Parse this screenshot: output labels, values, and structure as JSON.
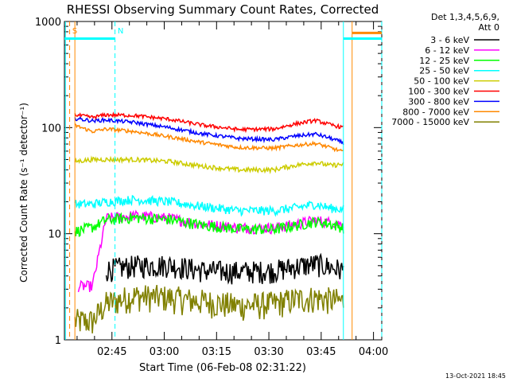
{
  "chart_data": {
    "type": "line",
    "title": "RHESSI Observing Summary Count Rates, Corrected",
    "xlabel": "Start Time (06-Feb-08 02:31:22)",
    "ylabel": "Corrected Count Rate (s⁻¹ detector⁻¹)",
    "yscale": "log",
    "ylim": [
      1,
      1000
    ],
    "xlim_minutes": [
      0,
      91
    ],
    "x_unit": "minutes since 02:31:22",
    "x_ticks": [
      {
        "label": "02:45",
        "value": 13.63
      },
      {
        "label": "03:00",
        "value": 28.63
      },
      {
        "label": "03:15",
        "value": 43.63
      },
      {
        "label": "03:30",
        "value": 58.63
      },
      {
        "label": "03:45",
        "value": 73.63
      },
      {
        "label": "04:00",
        "value": 88.63
      }
    ],
    "y_ticks": [
      {
        "label": "1",
        "value": 1
      },
      {
        "label": "10",
        "value": 10
      },
      {
        "label": "100",
        "value": 100
      },
      {
        "label": "1000",
        "value": 1000
      }
    ],
    "legend": {
      "title_lines": [
        "Det 1,3,4,5,6,9,",
        "Att 0"
      ],
      "position": "right"
    },
    "series": [
      {
        "name": "3 - 6 keV",
        "color": "#000000",
        "x": [
          12,
          20,
          30,
          40,
          50,
          60,
          66,
          72,
          76,
          80
        ],
        "y": [
          4.6,
          5.0,
          5.1,
          4.5,
          4.4,
          4.5,
          4.9,
          5.2,
          4.9,
          4.5
        ]
      },
      {
        "name": "6 - 12 keV",
        "color": "#ff00ff",
        "x": [
          4,
          8,
          12,
          20,
          30,
          40,
          50,
          60,
          66,
          72,
          76,
          80
        ],
        "y": [
          3.2,
          3.2,
          14.0,
          14.8,
          14.0,
          12.3,
          11.4,
          11.3,
          12.2,
          13.4,
          12.8,
          12.2
        ]
      },
      {
        "name": "12 - 25 keV",
        "color": "#00ff00",
        "x": [
          3,
          8,
          12,
          20,
          30,
          40,
          50,
          60,
          66,
          72,
          76,
          80
        ],
        "y": [
          10.5,
          11.5,
          13.5,
          14.2,
          13.6,
          12.0,
          11.1,
          11.0,
          11.9,
          13.0,
          12.4,
          11.4
        ]
      },
      {
        "name": "25 - 50 keV",
        "color": "#00ffff",
        "x": [
          3,
          8,
          12,
          20,
          30,
          40,
          50,
          60,
          66,
          72,
          76,
          80
        ],
        "y": [
          19,
          19,
          20,
          21,
          20,
          18,
          16.5,
          16.5,
          17.5,
          19,
          17.5,
          17
        ]
      },
      {
        "name": "50 - 100 keV",
        "color": "#cccc00",
        "x": [
          3,
          8,
          12,
          20,
          30,
          40,
          50,
          60,
          66,
          72,
          76,
          80
        ],
        "y": [
          48,
          50,
          50,
          50,
          48,
          43,
          40,
          40,
          44,
          47,
          44,
          45
        ]
      },
      {
        "name": "100 - 300 keV",
        "color": "#ff0000",
        "x": [
          3,
          8,
          12,
          20,
          30,
          40,
          50,
          60,
          66,
          72,
          76,
          80
        ],
        "y": [
          132,
          125,
          132,
          130,
          120,
          105,
          96,
          97,
          108,
          117,
          107,
          100
        ]
      },
      {
        "name": "300 - 800 keV",
        "color": "#0000ff",
        "x": [
          3,
          8,
          12,
          20,
          30,
          40,
          50,
          60,
          66,
          72,
          76,
          80
        ],
        "y": [
          122,
          116,
          118,
          112,
          100,
          87,
          79,
          77,
          83,
          87,
          80,
          72
        ]
      },
      {
        "name": "800 - 7000 keV",
        "color": "#ff8800",
        "x": [
          3,
          8,
          12,
          20,
          30,
          40,
          50,
          60,
          66,
          72,
          76,
          80
        ],
        "y": [
          105,
          92,
          97,
          92,
          82,
          72,
          65,
          64,
          68,
          71,
          65,
          59
        ]
      },
      {
        "name": "7000 - 15000 keV",
        "color": "#808000",
        "x": [
          3,
          8,
          12,
          20,
          30,
          40,
          50,
          60,
          66,
          72,
          76,
          80
        ],
        "y": [
          1.5,
          1.5,
          2.2,
          2.6,
          2.5,
          2.3,
          2.1,
          2.2,
          2.4,
          2.5,
          2.4,
          2.3
        ]
      }
    ],
    "annotations": [
      {
        "text": "S",
        "color": "#ff8800",
        "x": 1.8
      },
      {
        "text": "N",
        "color": "#00ffff",
        "x": 14.8
      }
    ],
    "flag_bars": [
      {
        "color": "#00ffff",
        "x_start": 0,
        "x_end": 14.5,
        "y_value": 690
      },
      {
        "color": "#00ffff",
        "x_start": 80,
        "x_end": 91,
        "y_value": 690
      },
      {
        "color": "#ff8800",
        "x_start": 82.5,
        "x_end": 91,
        "y_value": 780
      }
    ],
    "vertical_markers": [
      {
        "color": "#00ffff",
        "x": 0.3,
        "style": "solid"
      },
      {
        "color": "#ff8800",
        "x": 1.5,
        "style": "dashed"
      },
      {
        "color": "#ff8800",
        "x": 3,
        "style": "solid"
      },
      {
        "color": "#00ffff",
        "x": 14.5,
        "style": "dashed"
      },
      {
        "color": "#00ffff",
        "x": 80,
        "style": "solid"
      },
      {
        "color": "#ff8800",
        "x": 82.5,
        "style": "solid"
      },
      {
        "color": "#00ffff",
        "x": 91,
        "style": "dashed"
      }
    ]
  },
  "footer": {
    "timestamp": "13-Oct-2021 18:45"
  }
}
